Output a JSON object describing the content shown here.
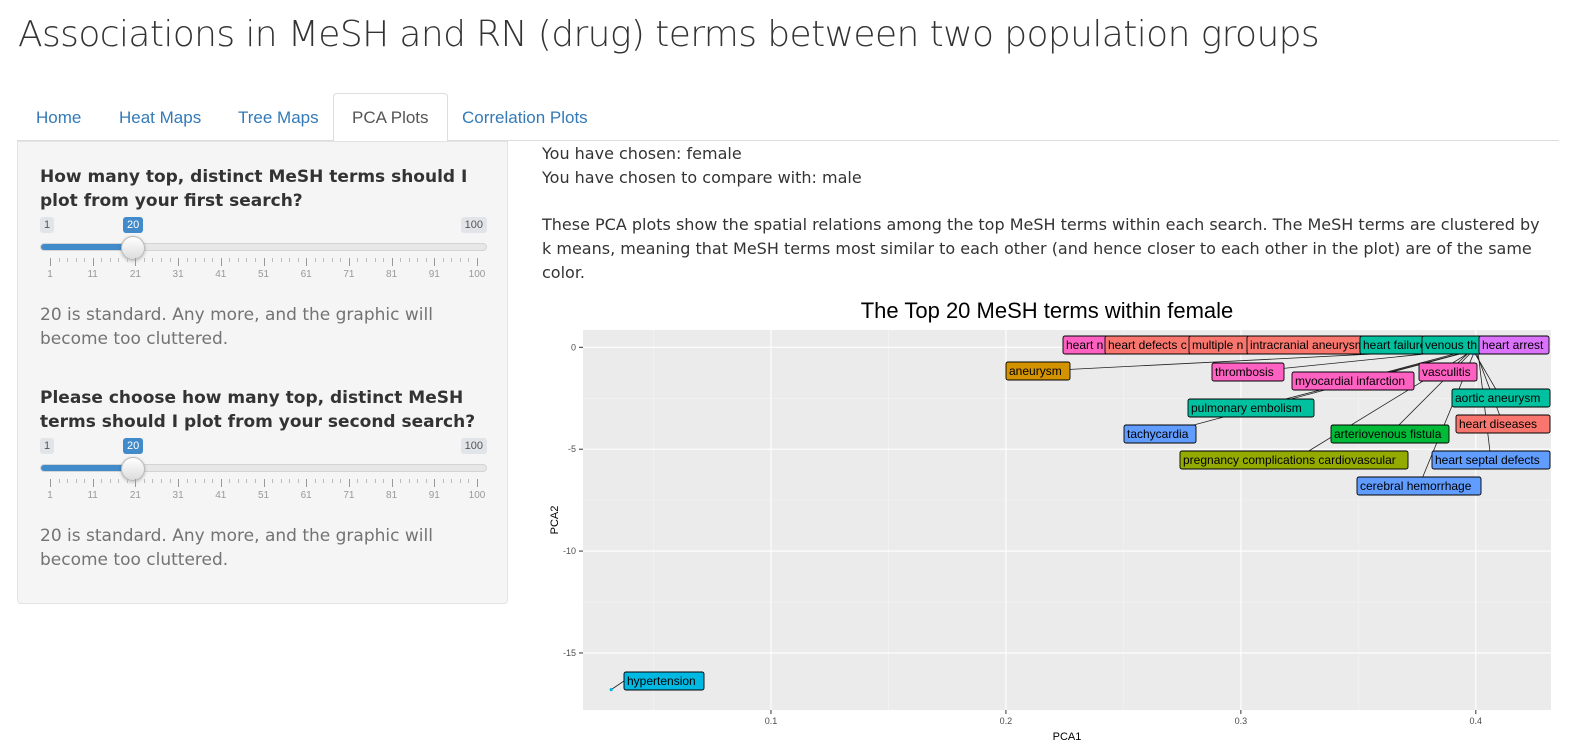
{
  "app": {
    "title": "Associations in MeSH and RN (drug) terms between two population groups"
  },
  "tabs": [
    {
      "label": "Home",
      "active": false
    },
    {
      "label": "Heat Maps",
      "active": false
    },
    {
      "label": "Tree Maps",
      "active": false
    },
    {
      "label": "PCA Plots",
      "active": true
    },
    {
      "label": "Correlation Plots",
      "active": false
    }
  ],
  "sidebar": {
    "slider1": {
      "label": "How many top, distinct MeSH terms should I plot from your first search?",
      "min": "1",
      "max": "100",
      "value": "20",
      "help": "20 is standard. Any more, and the graphic will become too cluttered."
    },
    "slider2": {
      "label": "Please choose how many top, distinct MeSH terms should I plot from your second search?",
      "min": "1",
      "max": "100",
      "value": "20",
      "help": "20 is standard. Any more, and the graphic will become too cluttered."
    },
    "tick_labels": [
      "1",
      "11",
      "21",
      "31",
      "41",
      "51",
      "61",
      "71",
      "81",
      "91",
      "100"
    ]
  },
  "main": {
    "chosen": "You have chosen: female",
    "compare": "You have chosen to compare with: male",
    "description": "These PCA plots show the spatial relations among the top MeSH terms within each search. The MeSH terms are clustered by k means, meaning that MeSH terms most similar to each other (and hence closer to each other in the plot) are of the same color."
  },
  "chart_data": {
    "type": "scatter",
    "title": "The Top 20 MeSH terms within female",
    "xlabel": "PCA1",
    "ylabel": "PCA2",
    "xlim": [
      0.02,
      0.432
    ],
    "ylim": [
      -17.8,
      0.85
    ],
    "xticks": [
      0.1,
      0.2,
      0.3,
      0.4
    ],
    "xtick_labels": [
      "0.1",
      "0.2",
      "0.3",
      "0.4"
    ],
    "yticks": [
      0,
      -5,
      -10,
      -15
    ],
    "ytick_labels": [
      "0",
      "-5",
      "-10",
      "-15"
    ],
    "grid": true,
    "clusters": {
      "orange": "#d39200",
      "olive": "#93aa00",
      "green": "#00ba38",
      "teal": "#00c19f",
      "cyan": "#00b9e3",
      "blue": "#619cff",
      "purple": "#db72fb",
      "pink": "#ff61c3",
      "red": "#f8766d"
    },
    "points": [
      {
        "label": "heart n",
        "x": 0.396,
        "y": -0.02,
        "cluster": "pink"
      },
      {
        "label": "heart defects c",
        "x": 0.397,
        "y": -0.02,
        "cluster": "red"
      },
      {
        "label": "multiple n",
        "x": 0.398,
        "y": -0.03,
        "cluster": "red"
      },
      {
        "label": "intracranial aneurysm",
        "x": 0.399,
        "y": -0.04,
        "cluster": "red"
      },
      {
        "label": "heart failure",
        "x": 0.4,
        "y": -0.05,
        "cluster": "teal"
      },
      {
        "label": "venous th",
        "x": 0.401,
        "y": -0.05,
        "cluster": "teal"
      },
      {
        "label": "heart arrest",
        "x": 0.402,
        "y": -0.06,
        "cluster": "purple"
      },
      {
        "label": "aneurysm",
        "x": 0.395,
        "y": -0.1,
        "cluster": "orange"
      },
      {
        "label": "thrombosis",
        "x": 0.396,
        "y": -0.12,
        "cluster": "pink"
      },
      {
        "label": "myocardial infarction",
        "x": 0.397,
        "y": -0.14,
        "cluster": "pink"
      },
      {
        "label": "vasculitis",
        "x": 0.398,
        "y": -0.16,
        "cluster": "pink"
      },
      {
        "label": "aortic aneurysm",
        "x": 0.399,
        "y": -0.18,
        "cluster": "teal"
      },
      {
        "label": "pulmonary embolism",
        "x": 0.397,
        "y": -0.2,
        "cluster": "teal"
      },
      {
        "label": "heart diseases",
        "x": 0.4,
        "y": -0.22,
        "cluster": "red"
      },
      {
        "label": "tachycardia",
        "x": 0.396,
        "y": -0.24,
        "cluster": "blue"
      },
      {
        "label": "arteriovenous fistula",
        "x": 0.398,
        "y": -0.26,
        "cluster": "green"
      },
      {
        "label": "pregnancy complications cardiovascular",
        "x": 0.397,
        "y": -0.28,
        "cluster": "olive"
      },
      {
        "label": "heart septal defects",
        "x": 0.401,
        "y": -0.3,
        "cluster": "blue"
      },
      {
        "label": "cerebral hemorrhage",
        "x": 0.399,
        "y": -0.32,
        "cluster": "blue"
      },
      {
        "label": "hypertension",
        "x": 0.032,
        "y": -16.8,
        "cluster": "cyan"
      }
    ]
  }
}
